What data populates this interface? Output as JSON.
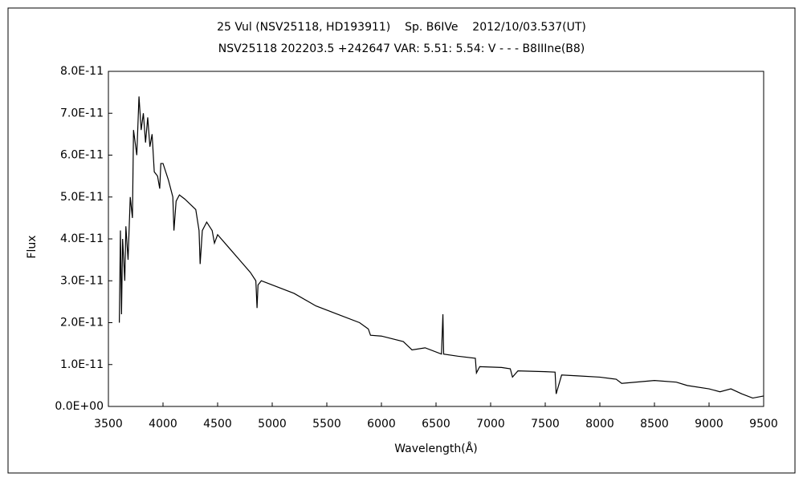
{
  "chart_data": {
    "type": "line",
    "title": "25 Vul (NSV25118, HD193911)    Sp. B6IVe    2012/10/03.537(UT)",
    "subtitle": "NSV25118 202203.5 +242647 VAR: 5.51: 5.54: V - - - B8IIIne(B8)",
    "x_label": "Wavelength(Å)",
    "y_label": "Flux",
    "color": "#000000",
    "x": [
      3600,
      3610,
      3620,
      3630,
      3650,
      3660,
      3680,
      3700,
      3720,
      3730,
      3760,
      3780,
      3800,
      3820,
      3840,
      3860,
      3880,
      3900,
      3920,
      3950,
      3970,
      3980,
      4000,
      4050,
      4090,
      4100,
      4120,
      4150,
      4200,
      4300,
      4330,
      4340,
      4360,
      4400,
      4450,
      4471,
      4500,
      4600,
      4700,
      4800,
      4850,
      4861,
      4870,
      4900,
      5000,
      5200,
      5400,
      5600,
      5800,
      5880,
      5900,
      6000,
      6200,
      6280,
      6400,
      6550,
      6563,
      6570,
      6700,
      6860,
      6870,
      6900,
      7100,
      7180,
      7200,
      7250,
      7500,
      7590,
      7600,
      7650,
      7800,
      8000,
      8150,
      8200,
      8500,
      8700,
      8800,
      9000,
      9100,
      9200,
      9300,
      9400,
      9500
    ],
    "values": [
      2e-11,
      4.2e-11,
      2.2e-11,
      4e-11,
      3e-11,
      4.3e-11,
      3.5e-11,
      5e-11,
      4.5e-11,
      6.6e-11,
      6e-11,
      7.4e-11,
      6.6e-11,
      7e-11,
      6.3e-11,
      6.9e-11,
      6.2e-11,
      6.5e-11,
      5.6e-11,
      5.5e-11,
      5.2e-11,
      5.8e-11,
      5.8e-11,
      5.4e-11,
      5e-11,
      4.2e-11,
      4.9e-11,
      5.05e-11,
      4.95e-11,
      4.7e-11,
      4.2e-11,
      3.4e-11,
      4.2e-11,
      4.4e-11,
      4.2e-11,
      3.9e-11,
      4.1e-11,
      3.8e-11,
      3.5e-11,
      3.2e-11,
      3e-11,
      2.35e-11,
      2.9e-11,
      3e-11,
      2.9e-11,
      2.7e-11,
      2.4e-11,
      2.2e-11,
      2e-11,
      1.85e-11,
      1.7e-11,
      1.68e-11,
      1.55e-11,
      1.35e-11,
      1.4e-11,
      1.25e-11,
      2.2e-11,
      1.25e-11,
      1.2e-11,
      1.15e-11,
      8e-12,
      9.5e-12,
      9.3e-12,
      9e-12,
      7e-12,
      8.5e-12,
      8.3e-12,
      8.2e-12,
      3e-12,
      7.5e-12,
      7.3e-12,
      7e-12,
      6.5e-12,
      5.5e-12,
      6.2e-12,
      5.8e-12,
      5e-12,
      4.2e-12,
      3.5e-12,
      4.2e-12,
      3e-12,
      2e-12,
      2.5e-12
    ],
    "xlim": [
      3500,
      9500
    ],
    "xticks": [
      3500,
      4000,
      4500,
      5000,
      5500,
      6000,
      6500,
      7000,
      7500,
      8000,
      8500,
      9000,
      9500
    ],
    "ylim": [
      0,
      8e-11
    ],
    "yticks": [
      {
        "value": 0,
        "label": "0.0E+00"
      },
      {
        "value": 1e-11,
        "label": "1.0E-11"
      },
      {
        "value": 2e-11,
        "label": "2.0E-11"
      },
      {
        "value": 3e-11,
        "label": "3.0E-11"
      },
      {
        "value": 4e-11,
        "label": "4.0E-11"
      },
      {
        "value": 5e-11,
        "label": "5.0E-11"
      },
      {
        "value": 6e-11,
        "label": "6.0E-11"
      },
      {
        "value": 7e-11,
        "label": "7.0E-11"
      },
      {
        "value": 8e-11,
        "label": "8.0E-11"
      }
    ],
    "grid": false
  }
}
